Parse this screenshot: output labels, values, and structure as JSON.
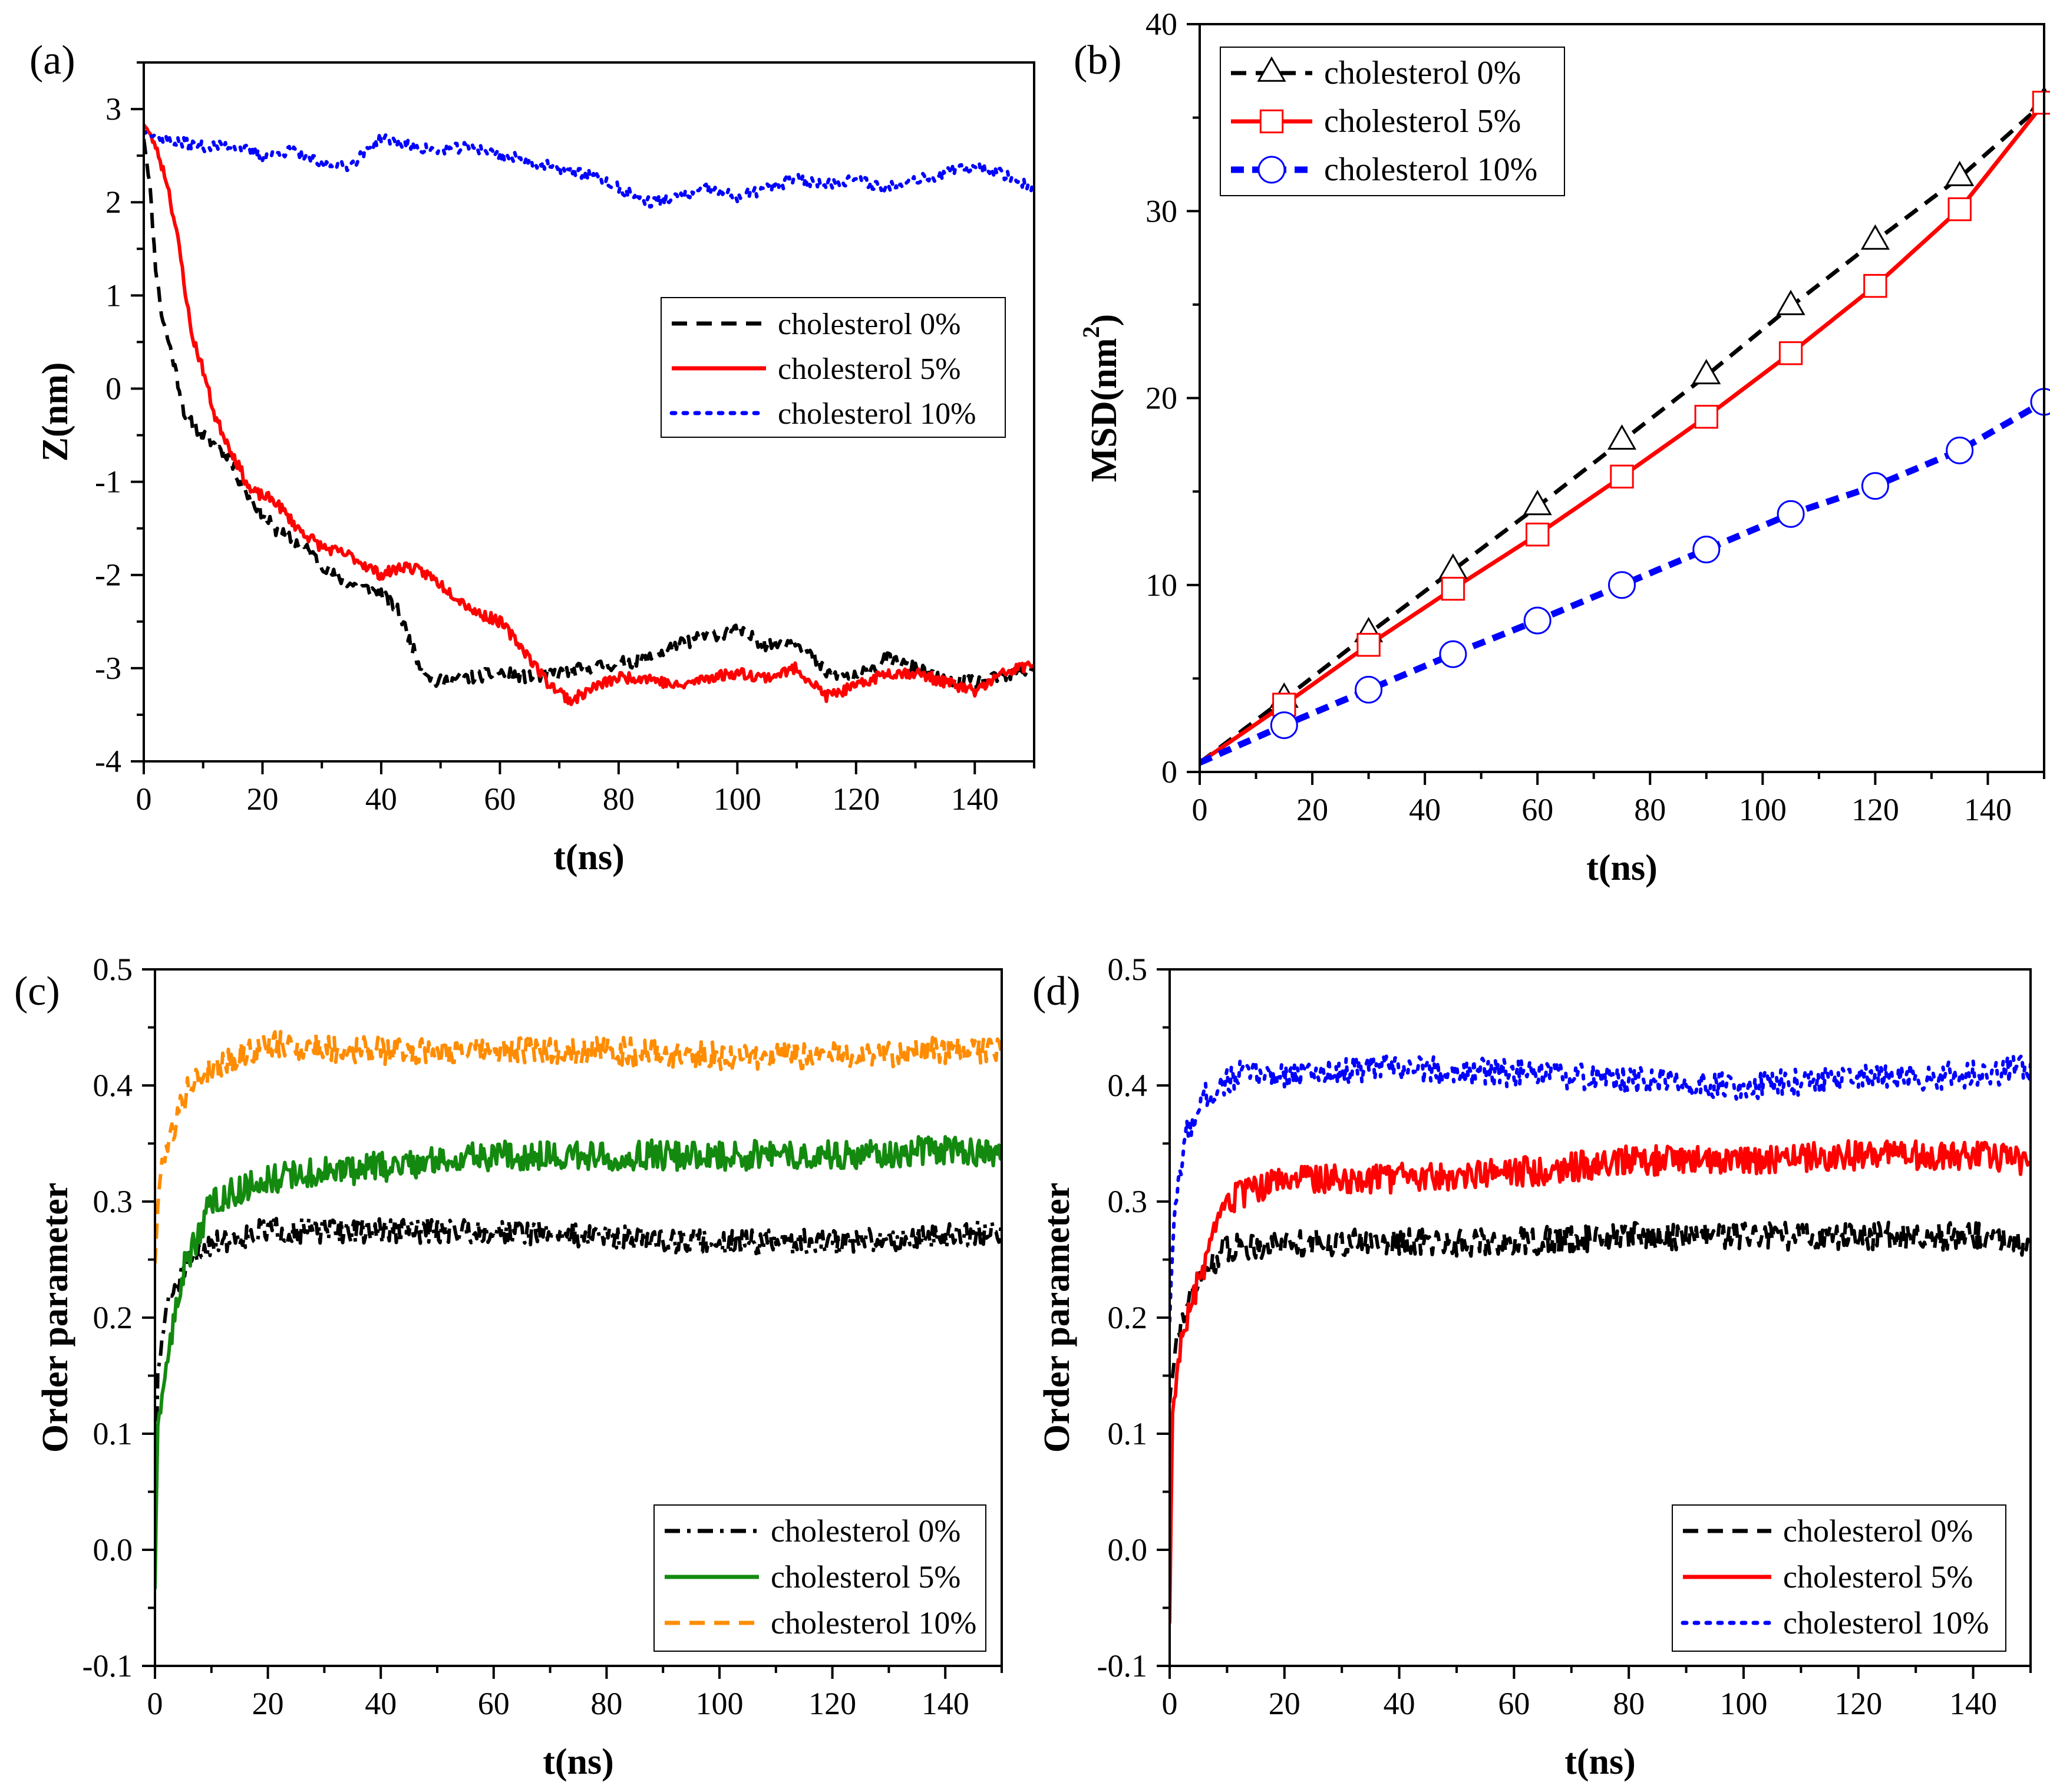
{
  "colors": {
    "black": "#000000",
    "red": "#ff0000",
    "blue": "#0000ff",
    "green": "#138a0f",
    "orange": "#ff8c00"
  },
  "chart_data": [
    {
      "id": "a",
      "panel_label": "(a)",
      "type": "line",
      "xlabel": "t(ns)",
      "ylabel": "Z(nm)",
      "xlim": [
        0,
        150
      ],
      "ylim": [
        -4,
        3.5
      ],
      "xticks": [
        0,
        20,
        40,
        60,
        80,
        100,
        120,
        140
      ],
      "yticks": [
        -4,
        -3,
        -2,
        -1,
        0,
        1,
        2,
        3
      ],
      "legend_position": "center-right",
      "series": [
        {
          "name": "cholesterol 0%",
          "color": "#000000",
          "style": "dashed",
          "noise": 0.07,
          "seed": 11,
          "points": [
            [
              0,
              2.7
            ],
            [
              1,
              2.2
            ],
            [
              2,
              1.3
            ],
            [
              3,
              0.8
            ],
            [
              5,
              0.3
            ],
            [
              7,
              -0.3
            ],
            [
              10,
              -0.5
            ],
            [
              14,
              -0.7
            ],
            [
              17,
              -1.1
            ],
            [
              22,
              -1.5
            ],
            [
              27,
              -1.7
            ],
            [
              32,
              -2.0
            ],
            [
              35,
              -2.1
            ],
            [
              40,
              -2.2
            ],
            [
              43,
              -2.4
            ],
            [
              46,
              -2.9
            ],
            [
              49,
              -3.15
            ],
            [
              55,
              -3.1
            ],
            [
              60,
              -3.05
            ],
            [
              65,
              -3.1
            ],
            [
              70,
              -3.05
            ],
            [
              75,
              -3.0
            ],
            [
              80,
              -2.95
            ],
            [
              85,
              -2.9
            ],
            [
              90,
              -2.75
            ],
            [
              95,
              -2.65
            ],
            [
              100,
              -2.6
            ],
            [
              105,
              -2.75
            ],
            [
              110,
              -2.7
            ],
            [
              115,
              -3.05
            ],
            [
              120,
              -3.1
            ],
            [
              125,
              -2.9
            ],
            [
              130,
              -3.0
            ],
            [
              135,
              -3.15
            ],
            [
              140,
              -3.15
            ],
            [
              145,
              -3.1
            ],
            [
              150,
              -3.0
            ]
          ]
        },
        {
          "name": "cholesterol 5%",
          "color": "#ff0000",
          "style": "solid",
          "noise": 0.06,
          "seed": 23,
          "points": [
            [
              0,
              2.85
            ],
            [
              2,
              2.6
            ],
            [
              4,
              2.2
            ],
            [
              6,
              1.5
            ],
            [
              8,
              0.6
            ],
            [
              10,
              0.2
            ],
            [
              12,
              -0.3
            ],
            [
              15,
              -0.7
            ],
            [
              18,
              -1.1
            ],
            [
              22,
              -1.2
            ],
            [
              26,
              -1.5
            ],
            [
              30,
              -1.7
            ],
            [
              35,
              -1.8
            ],
            [
              40,
              -2.0
            ],
            [
              44,
              -1.9
            ],
            [
              48,
              -2.0
            ],
            [
              52,
              -2.2
            ],
            [
              56,
              -2.4
            ],
            [
              60,
              -2.5
            ],
            [
              64,
              -2.8
            ],
            [
              68,
              -3.15
            ],
            [
              72,
              -3.35
            ],
            [
              76,
              -3.2
            ],
            [
              80,
              -3.1
            ],
            [
              85,
              -3.1
            ],
            [
              90,
              -3.2
            ],
            [
              95,
              -3.1
            ],
            [
              100,
              -3.05
            ],
            [
              105,
              -3.1
            ],
            [
              110,
              -3.0
            ],
            [
              115,
              -3.3
            ],
            [
              120,
              -3.2
            ],
            [
              125,
              -3.05
            ],
            [
              130,
              -3.05
            ],
            [
              135,
              -3.15
            ],
            [
              140,
              -3.25
            ],
            [
              145,
              -3.05
            ],
            [
              150,
              -2.95
            ]
          ]
        },
        {
          "name": "cholesterol 10%",
          "color": "#0000ff",
          "style": "dotted",
          "noise": 0.06,
          "seed": 37,
          "points": [
            [
              0,
              2.75
            ],
            [
              5,
              2.65
            ],
            [
              10,
              2.6
            ],
            [
              15,
              2.6
            ],
            [
              20,
              2.5
            ],
            [
              25,
              2.55
            ],
            [
              30,
              2.4
            ],
            [
              35,
              2.4
            ],
            [
              40,
              2.7
            ],
            [
              45,
              2.6
            ],
            [
              50,
              2.55
            ],
            [
              55,
              2.6
            ],
            [
              60,
              2.5
            ],
            [
              65,
              2.45
            ],
            [
              70,
              2.35
            ],
            [
              75,
              2.3
            ],
            [
              80,
              2.15
            ],
            [
              85,
              2.0
            ],
            [
              90,
              2.05
            ],
            [
              95,
              2.15
            ],
            [
              100,
              2.05
            ],
            [
              105,
              2.15
            ],
            [
              110,
              2.25
            ],
            [
              115,
              2.2
            ],
            [
              120,
              2.25
            ],
            [
              125,
              2.15
            ],
            [
              130,
              2.25
            ],
            [
              135,
              2.3
            ],
            [
              140,
              2.4
            ],
            [
              145,
              2.3
            ],
            [
              150,
              2.15
            ]
          ]
        }
      ]
    },
    {
      "id": "b",
      "panel_label": "(b)",
      "type": "line",
      "xlabel": "t(ns)",
      "ylabel": "MSD(nm",
      "ylabel_sup": "2",
      "ylabel_close": ")",
      "xlim": [
        0,
        150
      ],
      "ylim": [
        0,
        40
      ],
      "xticks": [
        0,
        20,
        40,
        60,
        80,
        100,
        120,
        140
      ],
      "yticks": [
        0,
        10,
        20,
        30,
        40
      ],
      "legend_position": "top-left",
      "series": [
        {
          "name": "cholesterol 0%",
          "color": "#000000",
          "style": "dashed",
          "marker": "triangle",
          "x": [
            0,
            15,
            30,
            45,
            60,
            75,
            90,
            105,
            120,
            135,
            150
          ],
          "y": [
            0.5,
            3.9,
            7.4,
            10.8,
            14.2,
            17.7,
            21.2,
            24.9,
            28.4,
            31.8,
            35.8
          ]
        },
        {
          "name": "cholesterol 5%",
          "color": "#ff0000",
          "style": "solid",
          "marker": "square",
          "x": [
            0,
            15,
            30,
            45,
            60,
            75,
            90,
            105,
            120,
            135,
            150
          ],
          "y": [
            0.5,
            3.6,
            6.8,
            9.8,
            12.7,
            15.8,
            19.0,
            22.4,
            26.0,
            30.1,
            35.8
          ]
        },
        {
          "name": "cholesterol 10%",
          "color": "#0000ff",
          "style": "dashed-thick",
          "marker": "circle",
          "x": [
            0,
            15,
            30,
            45,
            60,
            75,
            90,
            105,
            120,
            135,
            150
          ],
          "y": [
            0.5,
            2.5,
            4.4,
            6.3,
            8.1,
            10.0,
            11.9,
            13.8,
            15.3,
            17.2,
            19.8
          ]
        }
      ]
    },
    {
      "id": "c",
      "panel_label": "(c)",
      "type": "line",
      "xlabel": "t(ns)",
      "ylabel": "Order parameter",
      "xlim": [
        0,
        150
      ],
      "ylim": [
        -0.1,
        0.5
      ],
      "xticks": [
        0,
        20,
        40,
        60,
        80,
        100,
        120,
        140
      ],
      "yticks": [
        -0.1,
        0.0,
        0.1,
        0.2,
        0.3,
        0.4,
        0.5
      ],
      "legend_position": "bottom-right",
      "series": [
        {
          "name": "cholesterol 0%",
          "color": "#000000",
          "style": "dashdot",
          "noise": 0.011,
          "seed": 51,
          "points": [
            [
              0,
              0.0
            ],
            [
              0.5,
              0.15
            ],
            [
              2,
              0.21
            ],
            [
              5,
              0.24
            ],
            [
              10,
              0.265
            ],
            [
              20,
              0.275
            ],
            [
              40,
              0.275
            ],
            [
              60,
              0.275
            ],
            [
              80,
              0.27
            ],
            [
              100,
              0.265
            ],
            [
              120,
              0.265
            ],
            [
              140,
              0.27
            ],
            [
              150,
              0.275
            ]
          ]
        },
        {
          "name": "cholesterol 5%",
          "color": "#138a0f",
          "style": "solid",
          "noise": 0.013,
          "seed": 63,
          "points": [
            [
              0,
              -0.03
            ],
            [
              0.5,
              0.1
            ],
            [
              2,
              0.16
            ],
            [
              5,
              0.24
            ],
            [
              10,
              0.3
            ],
            [
              20,
              0.32
            ],
            [
              40,
              0.33
            ],
            [
              60,
              0.34
            ],
            [
              80,
              0.34
            ],
            [
              100,
              0.34
            ],
            [
              120,
              0.34
            ],
            [
              140,
              0.345
            ],
            [
              150,
              0.34
            ]
          ]
        },
        {
          "name": "cholesterol 10%",
          "color": "#ff8c00",
          "style": "dashed",
          "noise": 0.012,
          "seed": 79,
          "points": [
            [
              0,
              0.25
            ],
            [
              1,
              0.33
            ],
            [
              3,
              0.36
            ],
            [
              6,
              0.4
            ],
            [
              12,
              0.42
            ],
            [
              20,
              0.435
            ],
            [
              40,
              0.43
            ],
            [
              60,
              0.43
            ],
            [
              80,
              0.43
            ],
            [
              100,
              0.425
            ],
            [
              120,
              0.425
            ],
            [
              140,
              0.43
            ],
            [
              150,
              0.43
            ]
          ]
        }
      ]
    },
    {
      "id": "d",
      "panel_label": "(d)",
      "type": "line",
      "xlabel": "t(ns)",
      "ylabel": "Order parameter",
      "xlim": [
        0,
        150
      ],
      "ylim": [
        -0.1,
        0.5
      ],
      "xticks": [
        0,
        20,
        40,
        60,
        80,
        100,
        120,
        140
      ],
      "yticks": [
        -0.1,
        0.0,
        0.1,
        0.2,
        0.3,
        0.4,
        0.5
      ],
      "legend_position": "bottom-right",
      "series": [
        {
          "name": "cholesterol 0%",
          "color": "#000000",
          "style": "dashed",
          "noise": 0.012,
          "seed": 91,
          "points": [
            [
              0,
              0.13
            ],
            [
              1,
              0.18
            ],
            [
              3,
              0.21
            ],
            [
              6,
              0.24
            ],
            [
              10,
              0.26
            ],
            [
              20,
              0.265
            ],
            [
              40,
              0.265
            ],
            [
              60,
              0.265
            ],
            [
              80,
              0.27
            ],
            [
              100,
              0.27
            ],
            [
              120,
              0.27
            ],
            [
              140,
              0.27
            ],
            [
              150,
              0.265
            ]
          ]
        },
        {
          "name": "cholesterol 5%",
          "color": "#ff0000",
          "style": "solid",
          "noise": 0.013,
          "seed": 103,
          "points": [
            [
              0,
              -0.06
            ],
            [
              0.5,
              0.12
            ],
            [
              2,
              0.18
            ],
            [
              5,
              0.23
            ],
            [
              10,
              0.3
            ],
            [
              20,
              0.32
            ],
            [
              40,
              0.32
            ],
            [
              60,
              0.325
            ],
            [
              80,
              0.335
            ],
            [
              100,
              0.335
            ],
            [
              120,
              0.34
            ],
            [
              140,
              0.34
            ],
            [
              150,
              0.335
            ]
          ]
        },
        {
          "name": "cholesterol 10%",
          "color": "#0000ff",
          "style": "dotted",
          "noise": 0.012,
          "seed": 117,
          "points": [
            [
              0,
              0.2
            ],
            [
              1,
              0.3
            ],
            [
              3,
              0.36
            ],
            [
              6,
              0.39
            ],
            [
              12,
              0.41
            ],
            [
              20,
              0.41
            ],
            [
              40,
              0.415
            ],
            [
              60,
              0.41
            ],
            [
              80,
              0.405
            ],
            [
              100,
              0.4
            ],
            [
              120,
              0.405
            ],
            [
              140,
              0.41
            ],
            [
              150,
              0.415
            ]
          ]
        }
      ]
    }
  ]
}
